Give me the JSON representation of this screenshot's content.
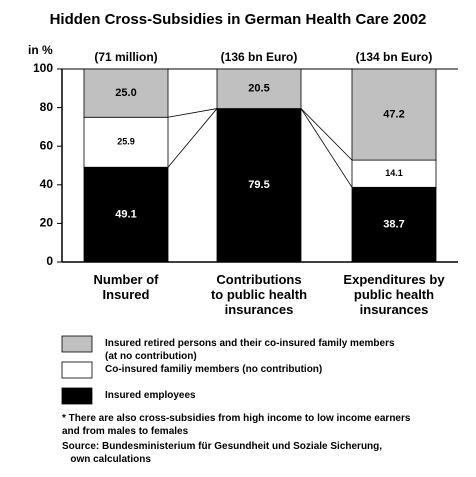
{
  "chart_data": {
    "type": "stacked_bar",
    "title": "Hidden Cross-Subsidies in German Health Care 2002",
    "y_unit_label": "in %",
    "categories": [
      "Number of\nInsured",
      "Contributions\nto public health\ninsurances",
      "Expenditures by\npublic health\ninsurances"
    ],
    "bar_annotations": [
      "(71 million)",
      "(136 bn Euro)",
      "(134 bn Euro)"
    ],
    "series": [
      {
        "name": "Insured employees",
        "color": "#000000",
        "values": [
          49.1,
          79.5,
          38.7
        ],
        "value_labels": [
          "49.1",
          "79.5",
          "38.7"
        ]
      },
      {
        "name": "Co-insured familiy members (no contribution)",
        "color": "#ffffff",
        "values": [
          25.9,
          null,
          14.1
        ],
        "value_labels": [
          "25.9",
          null,
          "14.1"
        ]
      },
      {
        "name": "Insured retired persons and their co-insured family members\n(at no contribution)",
        "color": "#c0c0c0",
        "values": [
          25.0,
          20.5,
          47.2
        ],
        "value_labels": [
          "25.0",
          "20.5",
          "47.2"
        ]
      }
    ],
    "ylim": [
      0,
      100
    ],
    "yticks": [
      0,
      20,
      40,
      60,
      80,
      100
    ],
    "grid": false,
    "footnotes": [
      "* There are also cross-subsidies from high income to low income earners\nand from males to females",
      "Source: Bundesministerium für Gesundheit und Soziale Sicherung,\n   own calculations"
    ]
  }
}
